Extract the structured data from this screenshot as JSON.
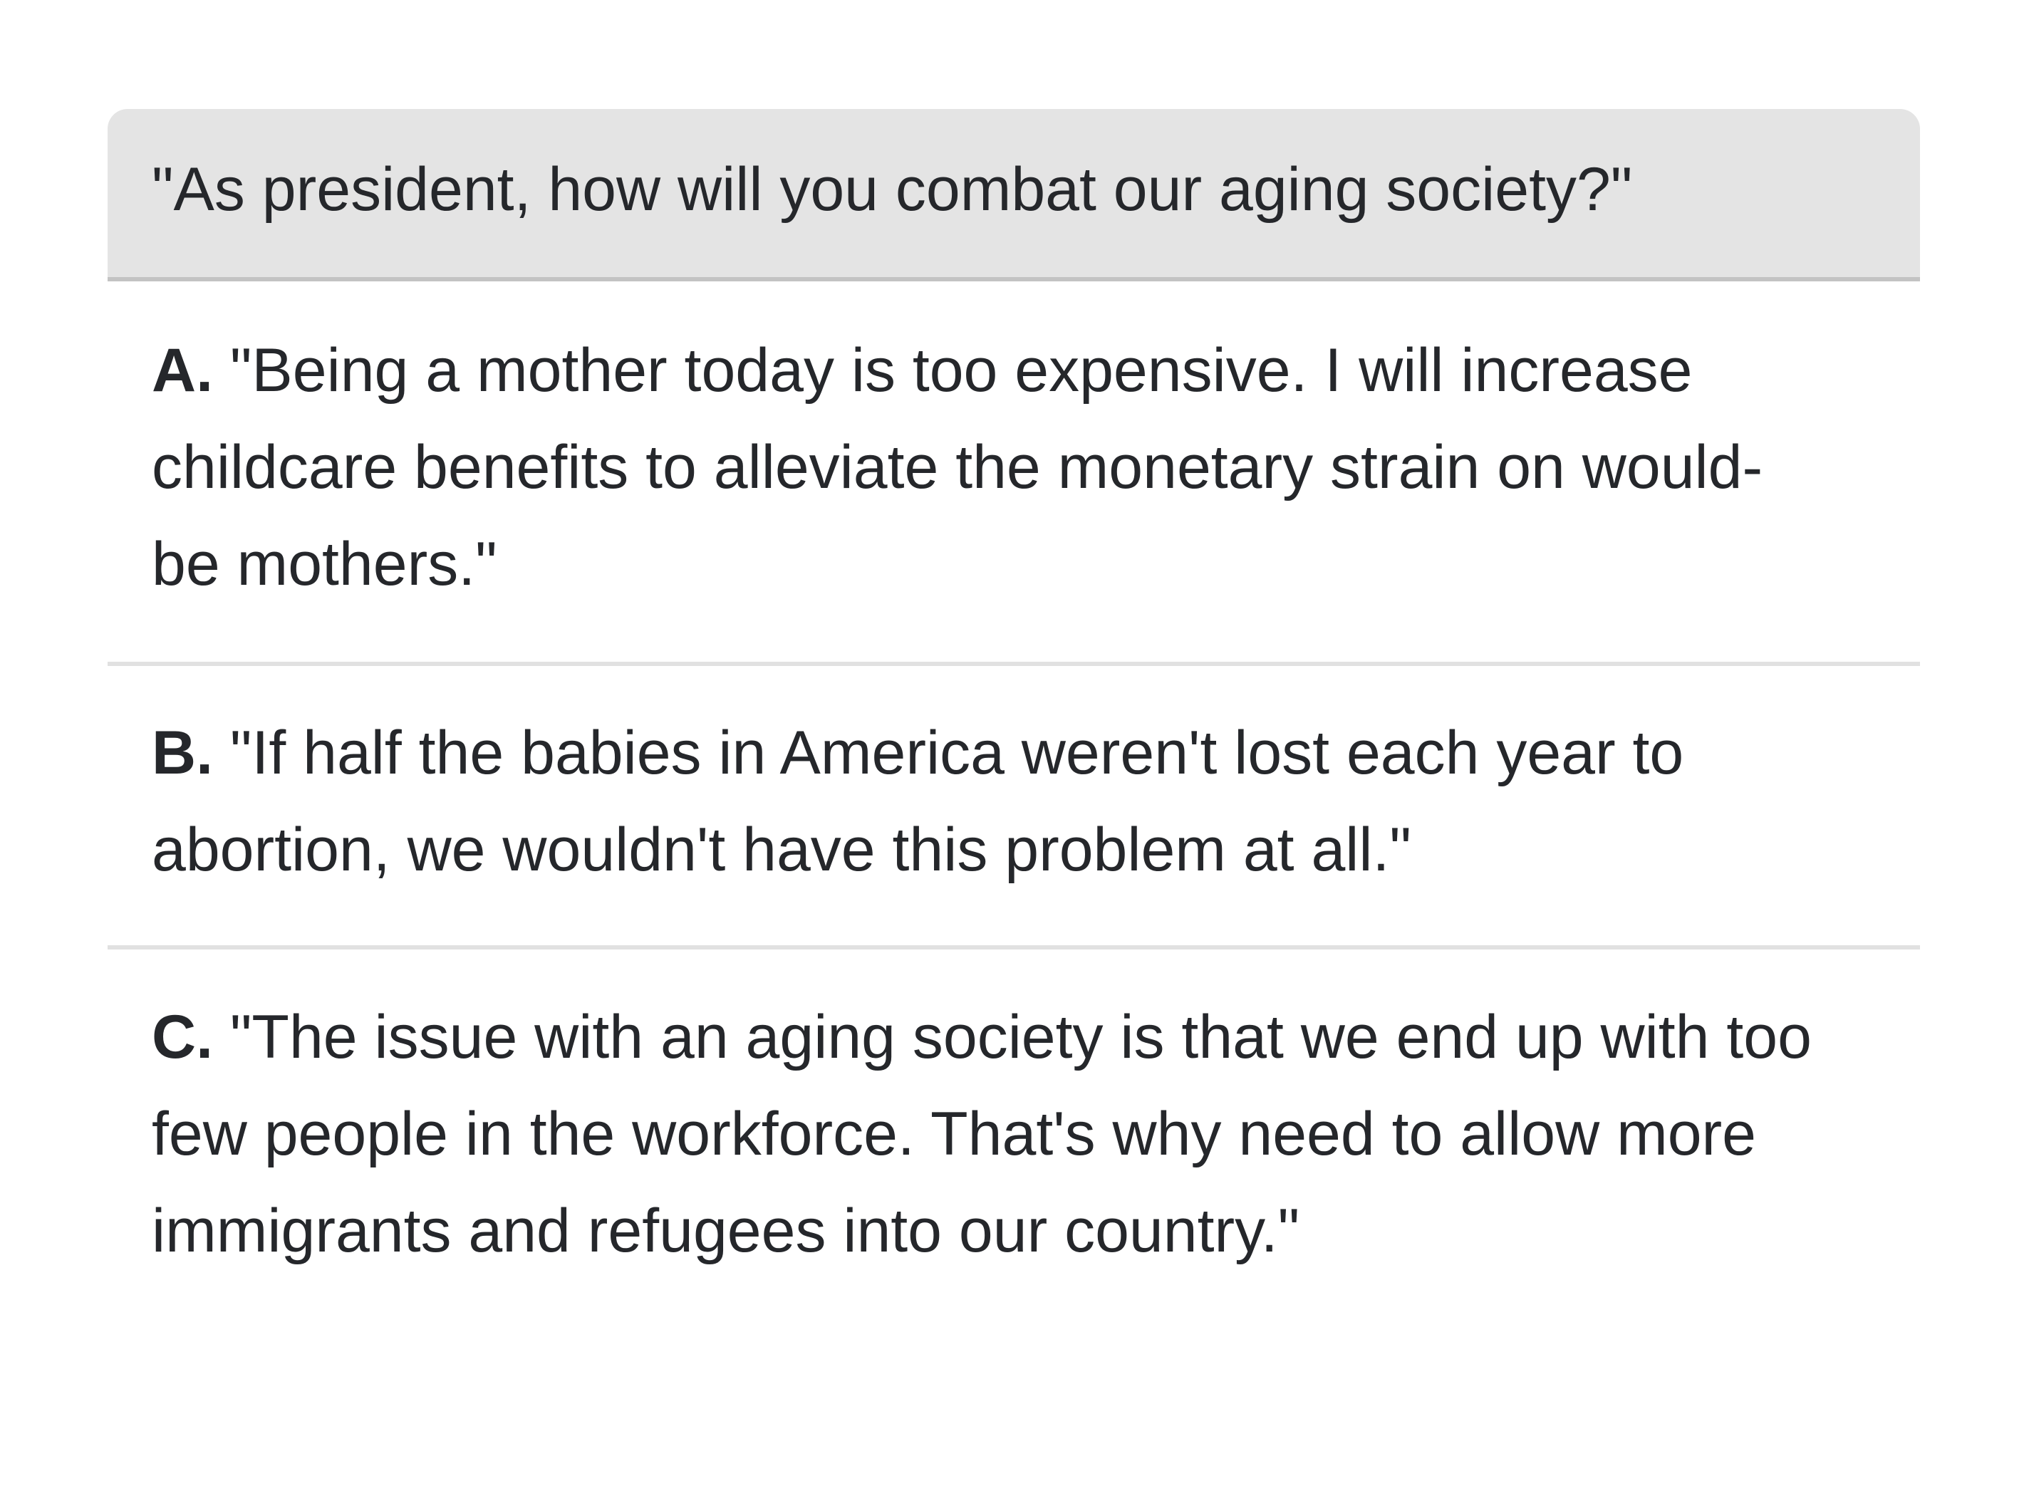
{
  "question": {
    "text": "\"As president, how will you combat our aging society?\""
  },
  "options": [
    {
      "letter": "A.",
      "text": "\"Being a mother today is too expensive. I will increase childcare benefits to alleviate the monetary strain on would-be mothers.\""
    },
    {
      "letter": "B.",
      "text": "\"If half the babies in America weren't lost each year to abortion, we wouldn't have this problem at all.\""
    },
    {
      "letter": "C.",
      "text": "\"The issue with an aging society is that we end up with too few people in the workforce. That's why need to allow more immigrants and refugees into our country.\""
    }
  ]
}
